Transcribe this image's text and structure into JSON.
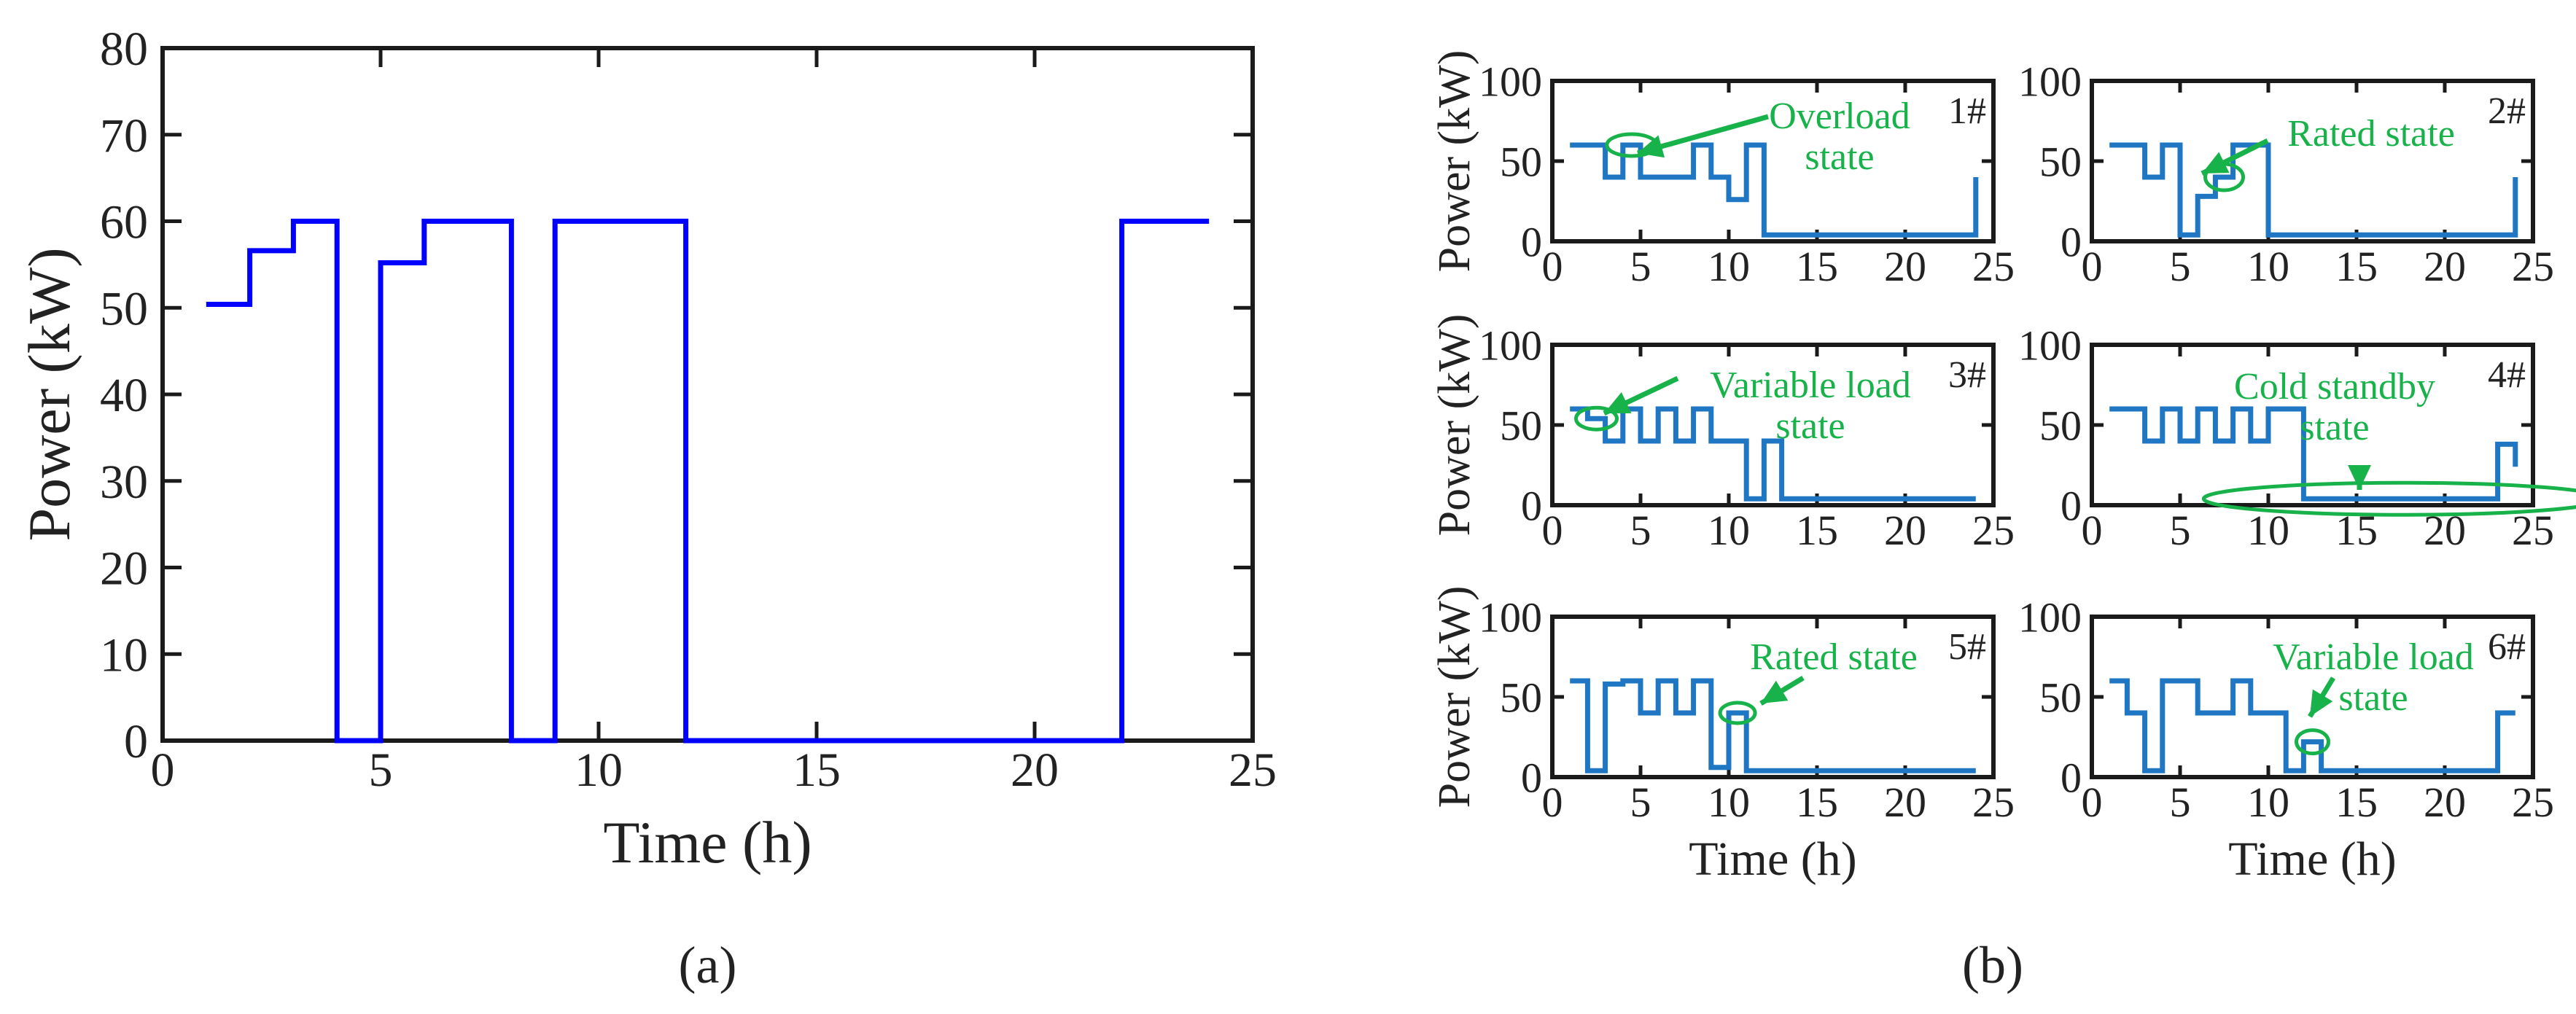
{
  "chart_data": [
    {
      "id": "a",
      "panel_label": "(a)",
      "type": "line",
      "step": true,
      "xlabel": "Time (h)",
      "ylabel": "Power (kW)",
      "xlim": [
        0,
        25
      ],
      "ylim": [
        0,
        80
      ],
      "xticks": [
        0,
        5,
        10,
        15,
        20,
        25
      ],
      "yticks": [
        0,
        10,
        20,
        30,
        40,
        50,
        60,
        70,
        80
      ],
      "series": [
        {
          "values": [
            [
              1,
              50.4
            ],
            [
              2,
              50.4
            ],
            [
              2,
              56.6
            ],
            [
              3,
              56.6
            ],
            [
              3,
              60
            ],
            [
              4,
              60
            ],
            [
              4,
              0
            ],
            [
              5,
              0
            ],
            [
              5,
              55.2
            ],
            [
              6,
              55.2
            ],
            [
              6,
              60
            ],
            [
              8,
              60
            ],
            [
              8,
              0
            ],
            [
              9,
              0
            ],
            [
              9,
              60
            ],
            [
              12,
              60
            ],
            [
              12,
              0
            ],
            [
              22,
              0
            ],
            [
              22,
              60
            ],
            [
              24,
              60
            ]
          ],
          "color": "#0000ff"
        }
      ]
    },
    {
      "id": "b",
      "panel_label": "(b)",
      "type": "line",
      "step": true,
      "xlabel": "Time (h)",
      "ylabel": "Power (kW)",
      "xlim": [
        0,
        25
      ],
      "ylim": [
        0,
        100
      ],
      "xticks": [
        0,
        5,
        10,
        15,
        20,
        25
      ],
      "yticks": [
        0,
        50,
        100
      ],
      "subplots": [
        {
          "label": "1#",
          "values": [
            [
              1,
              60
            ],
            [
              3,
              60
            ],
            [
              3,
              40
            ],
            [
              4,
              40
            ],
            [
              4,
              60
            ],
            [
              5,
              60
            ],
            [
              5,
              40
            ],
            [
              8,
              40
            ],
            [
              8,
              60
            ],
            [
              9,
              60
            ],
            [
              9,
              40
            ],
            [
              10,
              40
            ],
            [
              10,
              26
            ],
            [
              11,
              26
            ],
            [
              11,
              60
            ],
            [
              12,
              60
            ],
            [
              12,
              4
            ],
            [
              24,
              4
            ],
            [
              24,
              40
            ]
          ],
          "annotation": {
            "lines": [
              "Overload",
              "state"
            ],
            "point": [
              4.5,
              60
            ]
          }
        },
        {
          "label": "2#",
          "values": [
            [
              1,
              60
            ],
            [
              3,
              60
            ],
            [
              3,
              40
            ],
            [
              4,
              40
            ],
            [
              4,
              60
            ],
            [
              5,
              60
            ],
            [
              5,
              4
            ],
            [
              6,
              4
            ],
            [
              6,
              28
            ],
            [
              7,
              28
            ],
            [
              7,
              40
            ],
            [
              8,
              40
            ],
            [
              8,
              60
            ],
            [
              10,
              60
            ],
            [
              10,
              4
            ],
            [
              24,
              4
            ],
            [
              24,
              40
            ]
          ],
          "annotation": {
            "lines": [
              "Rated state"
            ],
            "point": [
              7.5,
              40
            ]
          }
        },
        {
          "label": "3#",
          "values": [
            [
              1,
              60
            ],
            [
              2,
              60
            ],
            [
              2,
              54
            ],
            [
              3,
              54
            ],
            [
              3,
              40
            ],
            [
              4,
              40
            ],
            [
              4,
              60
            ],
            [
              5,
              60
            ],
            [
              5,
              40
            ],
            [
              6,
              40
            ],
            [
              6,
              60
            ],
            [
              7,
              60
            ],
            [
              7,
              40
            ],
            [
              8,
              40
            ],
            [
              8,
              60
            ],
            [
              9,
              60
            ],
            [
              9,
              40
            ],
            [
              11,
              40
            ],
            [
              11,
              4
            ],
            [
              12,
              4
            ],
            [
              12,
              40
            ],
            [
              13,
              40
            ],
            [
              13,
              4
            ],
            [
              24,
              4
            ]
          ],
          "annotation": {
            "lines": [
              "Variable load",
              "state"
            ],
            "point": [
              2.5,
              54
            ]
          }
        },
        {
          "label": "4#",
          "values": [
            [
              1,
              60
            ],
            [
              3,
              60
            ],
            [
              3,
              40
            ],
            [
              4,
              40
            ],
            [
              4,
              60
            ],
            [
              5,
              60
            ],
            [
              5,
              40
            ],
            [
              6,
              40
            ],
            [
              6,
              60
            ],
            [
              7,
              60
            ],
            [
              7,
              40
            ],
            [
              8,
              40
            ],
            [
              8,
              60
            ],
            [
              9,
              60
            ],
            [
              9,
              40
            ],
            [
              10,
              40
            ],
            [
              10,
              60
            ],
            [
              12,
              60
            ],
            [
              12,
              4
            ],
            [
              23,
              4
            ],
            [
              23,
              38
            ],
            [
              24,
              38
            ],
            [
              24,
              24
            ]
          ],
          "annotation": {
            "lines": [
              "Cold standby",
              "state"
            ],
            "point": [
              17.7,
              4
            ]
          }
        },
        {
          "label": "5#",
          "values": [
            [
              1,
              60
            ],
            [
              2,
              60
            ],
            [
              2,
              4
            ],
            [
              3,
              4
            ],
            [
              3,
              58
            ],
            [
              4,
              58
            ],
            [
              4,
              60
            ],
            [
              5,
              60
            ],
            [
              5,
              40
            ],
            [
              6,
              40
            ],
            [
              6,
              60
            ],
            [
              7,
              60
            ],
            [
              7,
              40
            ],
            [
              8,
              40
            ],
            [
              8,
              60
            ],
            [
              9,
              60
            ],
            [
              9,
              6
            ],
            [
              10,
              6
            ],
            [
              10,
              40
            ],
            [
              11,
              40
            ],
            [
              11,
              4
            ],
            [
              24,
              4
            ]
          ],
          "annotation": {
            "lines": [
              "Rated state"
            ],
            "point": [
              10.5,
              40
            ]
          }
        },
        {
          "label": "6#",
          "values": [
            [
              1,
              60
            ],
            [
              2,
              60
            ],
            [
              2,
              40
            ],
            [
              3,
              40
            ],
            [
              3,
              4
            ],
            [
              4,
              4
            ],
            [
              4,
              60
            ],
            [
              6,
              60
            ],
            [
              6,
              40
            ],
            [
              8,
              40
            ],
            [
              8,
              60
            ],
            [
              9,
              60
            ],
            [
              9,
              40
            ],
            [
              11,
              40
            ],
            [
              11,
              4
            ],
            [
              12,
              4
            ],
            [
              12,
              22
            ],
            [
              13,
              22
            ],
            [
              13,
              4
            ],
            [
              23,
              4
            ],
            [
              23,
              40
            ],
            [
              24,
              40
            ]
          ],
          "annotation": {
            "lines": [
              "Variable load",
              "state"
            ],
            "point": [
              12.5,
              22
            ]
          }
        }
      ]
    }
  ]
}
